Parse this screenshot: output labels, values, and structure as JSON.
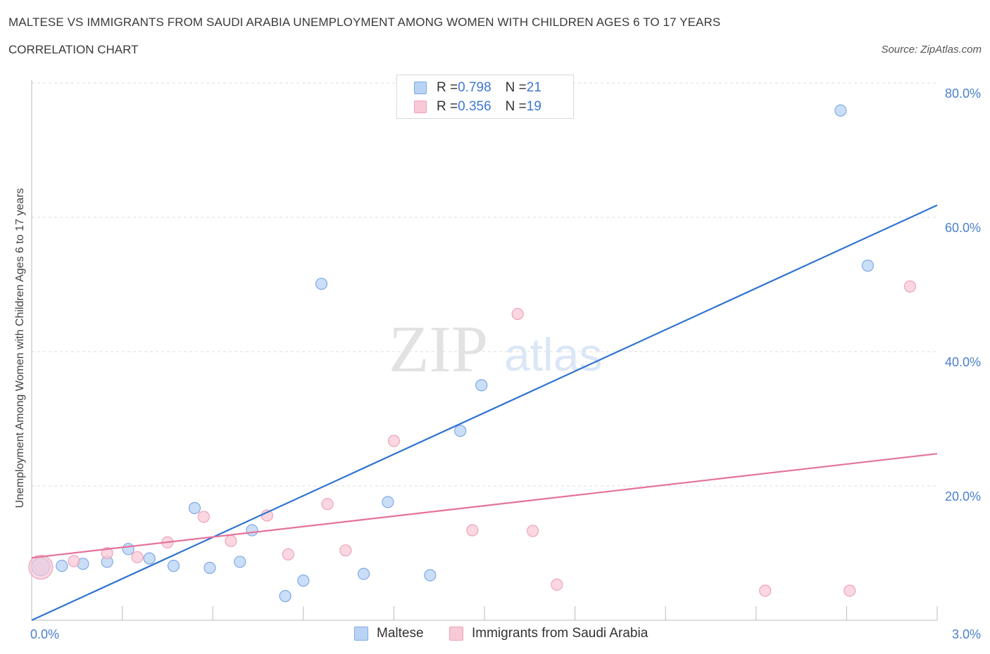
{
  "header": {
    "title": "MALTESE VS IMMIGRANTS FROM SAUDI ARABIA UNEMPLOYMENT AMONG WOMEN WITH CHILDREN AGES 6 TO 17 YEARS",
    "subtitle": "CORRELATION CHART",
    "source": "Source: ZipAtlas.com"
  },
  "watermark": {
    "zip": "ZIP",
    "atlas": "atlas"
  },
  "legend": {
    "rows": [
      {
        "r_label": "R = ",
        "r_value": "0.798",
        "n_label": "N = ",
        "n_value": "21"
      },
      {
        "r_label": "R = ",
        "r_value": "0.356",
        "n_label": "N = ",
        "n_value": "19"
      }
    ]
  },
  "bottom_legend": {
    "series1": "Maltese",
    "series2": "Immigrants from Saudi Arabia"
  },
  "colors": {
    "blue_fill": "#b9d3f5",
    "blue_stroke": "#7fa9e6",
    "blue_line": "#2f74d0",
    "pink_fill": "#f8c9d7",
    "pink_stroke": "#eea3b9",
    "pink_line": "#e4729a",
    "grid": "#dddddd",
    "tick_text": "#4a7fcf"
  },
  "chart_data": {
    "type": "scatter",
    "title": "MALTESE VS IMMIGRANTS FROM SAUDI ARABIA UNEMPLOYMENT AMONG WOMEN WITH CHILDREN AGES 6 TO 17 YEARS",
    "xlabel": "",
    "ylabel": "Unemployment Among Women with Children Ages 6 to 17 years",
    "xlim": [
      0,
      3.0
    ],
    "ylim": [
      0,
      80
    ],
    "x_tick_labels": [
      "0.0%",
      "3.0%"
    ],
    "y_ticks": [
      20,
      40,
      60,
      80
    ],
    "y_tick_labels": [
      "20.0%",
      "40.0%",
      "60.0%",
      "80.0%"
    ],
    "grid": true,
    "series": [
      {
        "name": "Maltese",
        "r": 0.798,
        "n": 21,
        "points": [
          {
            "x": 0.03,
            "y": 8.0,
            "size": "large"
          },
          {
            "x": 0.1,
            "y": 8.1
          },
          {
            "x": 0.17,
            "y": 8.4
          },
          {
            "x": 0.25,
            "y": 8.7
          },
          {
            "x": 0.32,
            "y": 10.6
          },
          {
            "x": 0.39,
            "y": 9.2
          },
          {
            "x": 0.47,
            "y": 8.1
          },
          {
            "x": 0.54,
            "y": 16.7
          },
          {
            "x": 0.59,
            "y": 7.8
          },
          {
            "x": 0.69,
            "y": 8.7
          },
          {
            "x": 0.73,
            "y": 13.4
          },
          {
            "x": 0.84,
            "y": 3.6
          },
          {
            "x": 0.9,
            "y": 5.9
          },
          {
            "x": 0.96,
            "y": 50.1
          },
          {
            "x": 1.1,
            "y": 6.9
          },
          {
            "x": 1.18,
            "y": 17.6
          },
          {
            "x": 1.32,
            "y": 6.7
          },
          {
            "x": 1.42,
            "y": 28.2
          },
          {
            "x": 1.49,
            "y": 35.0
          },
          {
            "x": 2.68,
            "y": 75.9
          },
          {
            "x": 2.77,
            "y": 52.8
          }
        ],
        "trend": {
          "x": [
            0,
            3.0
          ],
          "y": [
            0,
            61.8
          ]
        }
      },
      {
        "name": "Immigrants from Saudi Arabia",
        "r": 0.356,
        "n": 19,
        "points": [
          {
            "x": 0.03,
            "y": 7.9,
            "size": "large"
          },
          {
            "x": 0.14,
            "y": 8.8
          },
          {
            "x": 0.25,
            "y": 10.0
          },
          {
            "x": 0.35,
            "y": 9.4
          },
          {
            "x": 0.45,
            "y": 11.6
          },
          {
            "x": 0.57,
            "y": 15.4
          },
          {
            "x": 0.66,
            "y": 11.8
          },
          {
            "x": 0.78,
            "y": 15.6
          },
          {
            "x": 0.85,
            "y": 9.8
          },
          {
            "x": 0.98,
            "y": 17.3
          },
          {
            "x": 1.04,
            "y": 10.4
          },
          {
            "x": 1.2,
            "y": 26.7
          },
          {
            "x": 1.46,
            "y": 13.4
          },
          {
            "x": 1.61,
            "y": 45.6
          },
          {
            "x": 1.66,
            "y": 13.3
          },
          {
            "x": 1.74,
            "y": 5.3
          },
          {
            "x": 2.43,
            "y": 4.4
          },
          {
            "x": 2.71,
            "y": 4.4
          },
          {
            "x": 2.91,
            "y": 49.7
          }
        ],
        "trend": {
          "x": [
            0,
            3.0
          ],
          "y": [
            9.3,
            24.8
          ]
        }
      }
    ]
  }
}
